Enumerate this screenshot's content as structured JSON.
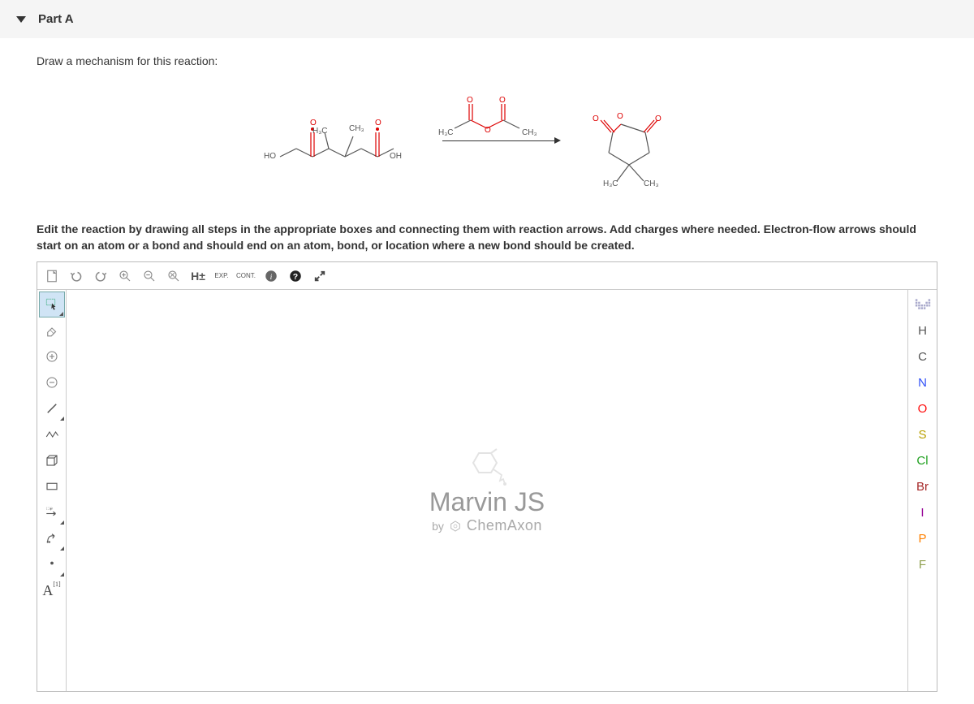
{
  "header": {
    "part_label": "Part A"
  },
  "instruction_text": "Draw a mechanism for this reaction:",
  "edit_instruction": "Edit the reaction by drawing all steps in the appropriate boxes and connecting them with reaction arrows. Add charges where needed. Electron-flow arrows should start on an atom or a bond and should end on an atom, bond, or location where a new bond should be created.",
  "reaction": {
    "labels": {
      "ho_left": "HO",
      "h3c_top1": "H₃C",
      "ch3_top1": "CH₃",
      "oh_right": "OH",
      "h3c_reagent": "H₃C",
      "ch3_reagent": "CH₃",
      "o_reagent": "O",
      "h3c_prod": "H₃C",
      "ch3_prod": "CH₃"
    }
  },
  "top_toolbar": {
    "new": "New",
    "undo": "Undo",
    "redo": "Redo",
    "zoom_in": "Zoom In",
    "zoom_out": "Zoom Out",
    "zoom_fit": "Zoom to Fit",
    "hplus": "H±",
    "exp": "EXP.",
    "cont": "CONT.",
    "info": "Info",
    "help": "Help",
    "expand": "Expand"
  },
  "left_toolbar": {
    "select": "Selection",
    "erase": "Erase",
    "charge_plus": "Increase Charge",
    "charge_minus": "Decrease Charge",
    "single_bond": "Single Bond",
    "chain": "Chain",
    "template": "Template",
    "rect": "Rectangle",
    "rxn_arrow": "Reaction Arrow",
    "eflow": "Electron Flow",
    "radical": "Radical",
    "atom_label": "A",
    "atom_label_sup": "[1]"
  },
  "right_toolbar": {
    "periodic": "Periodic Table",
    "atoms": [
      {
        "symbol": "H",
        "color": "#555555"
      },
      {
        "symbol": "C",
        "color": "#555555"
      },
      {
        "symbol": "N",
        "color": "#3050f8"
      },
      {
        "symbol": "O",
        "color": "#ff0d0d"
      },
      {
        "symbol": "S",
        "color": "#b8a000"
      },
      {
        "symbol": "Cl",
        "color": "#1fa01f"
      },
      {
        "symbol": "Br",
        "color": "#a62929"
      },
      {
        "symbol": "I",
        "color": "#940094"
      },
      {
        "symbol": "P",
        "color": "#ff8000"
      },
      {
        "symbol": "F",
        "color": "#90a050"
      }
    ]
  },
  "canvas": {
    "title": "Marvin JS",
    "by": "by",
    "brand": "ChemAxon"
  }
}
